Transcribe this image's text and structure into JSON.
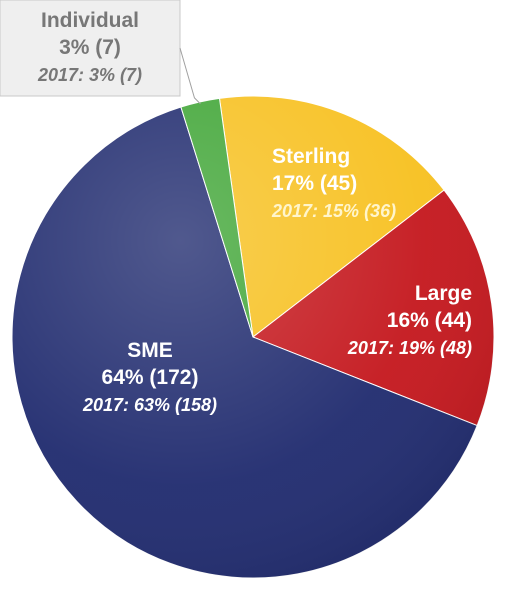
{
  "chart_data": {
    "type": "pie",
    "title": "",
    "start_angle_deg": -8,
    "direction": "clockwise",
    "slices": [
      {
        "name": "Sterling",
        "value": 45,
        "label": "Sterling",
        "pct_text": "17% (45)",
        "prior": "2017: 15% (36)",
        "color": "#f7c01e",
        "text_color": "#ffffff",
        "prior_color": "#fff5cc"
      },
      {
        "name": "Large",
        "value": 44,
        "label": "Large",
        "pct_text": "16% (44)",
        "prior": "2017: 19% (48)",
        "color": "#c4161c",
        "text_color": "#ffffff",
        "prior_color": "#ffffff"
      },
      {
        "name": "SME",
        "value": 172,
        "label": "SME",
        "pct_text": "64% (172)",
        "prior": "2017: 63% (158)",
        "color": "#1f2a6e",
        "text_color": "#ffffff",
        "prior_color": "#ffffff"
      },
      {
        "name": "Individual",
        "value": 7,
        "label": "Individual",
        "pct_text": "3% (7)",
        "prior": "2017: 3% (7)",
        "color": "#3fa535",
        "text_color": "#777777",
        "prior_color": "#777777"
      }
    ]
  }
}
